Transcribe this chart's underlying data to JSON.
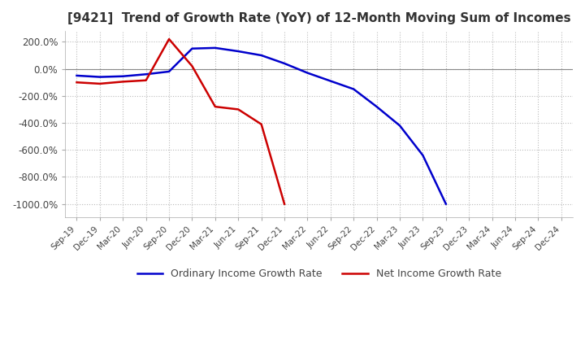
{
  "title": "[9421]  Trend of Growth Rate (YoY) of 12-Month Moving Sum of Incomes",
  "ylim": [
    -1100,
    280
  ],
  "yticks": [
    200,
    0,
    -200,
    -400,
    -600,
    -800,
    -1000
  ],
  "ytick_labels": [
    "200.0%",
    "0.0%",
    "-200.0%",
    "-400.0%",
    "-600.0%",
    "-800.0%",
    "-1000.0%"
  ],
  "legend_labels": [
    "Ordinary Income Growth Rate",
    "Net Income Growth Rate"
  ],
  "line_colors": [
    "#0000cc",
    "#cc0000"
  ],
  "background_color": "#ffffff",
  "grid_color": "#bbbbbb",
  "title_color": "#333333",
  "ordinary_income": {
    "values": [
      -50,
      -60,
      -55,
      -40,
      -20,
      150,
      155,
      130,
      100,
      40,
      -30,
      -90,
      -150,
      -280,
      -420,
      -640,
      -1000,
      null,
      null,
      null,
      null,
      null
    ]
  },
  "net_income": {
    "values": [
      -100,
      -110,
      -95,
      -85,
      220,
      20,
      -280,
      -300,
      -410,
      -1000,
      null,
      null,
      null,
      null,
      null,
      null,
      null,
      null,
      null,
      null,
      null,
      null
    ]
  },
  "x_tick_labels": [
    "Sep-19",
    "Dec-19",
    "Mar-20",
    "Jun-20",
    "Sep-20",
    "Dec-20",
    "Mar-21",
    "Jun-21",
    "Sep-21",
    "Dec-21",
    "Mar-22",
    "Jun-22",
    "Sep-22",
    "Dec-22",
    "Mar-23",
    "Jun-23",
    "Sep-23",
    "Dec-23",
    "Mar-24",
    "Jun-24",
    "Sep-24",
    "Dec-24"
  ]
}
